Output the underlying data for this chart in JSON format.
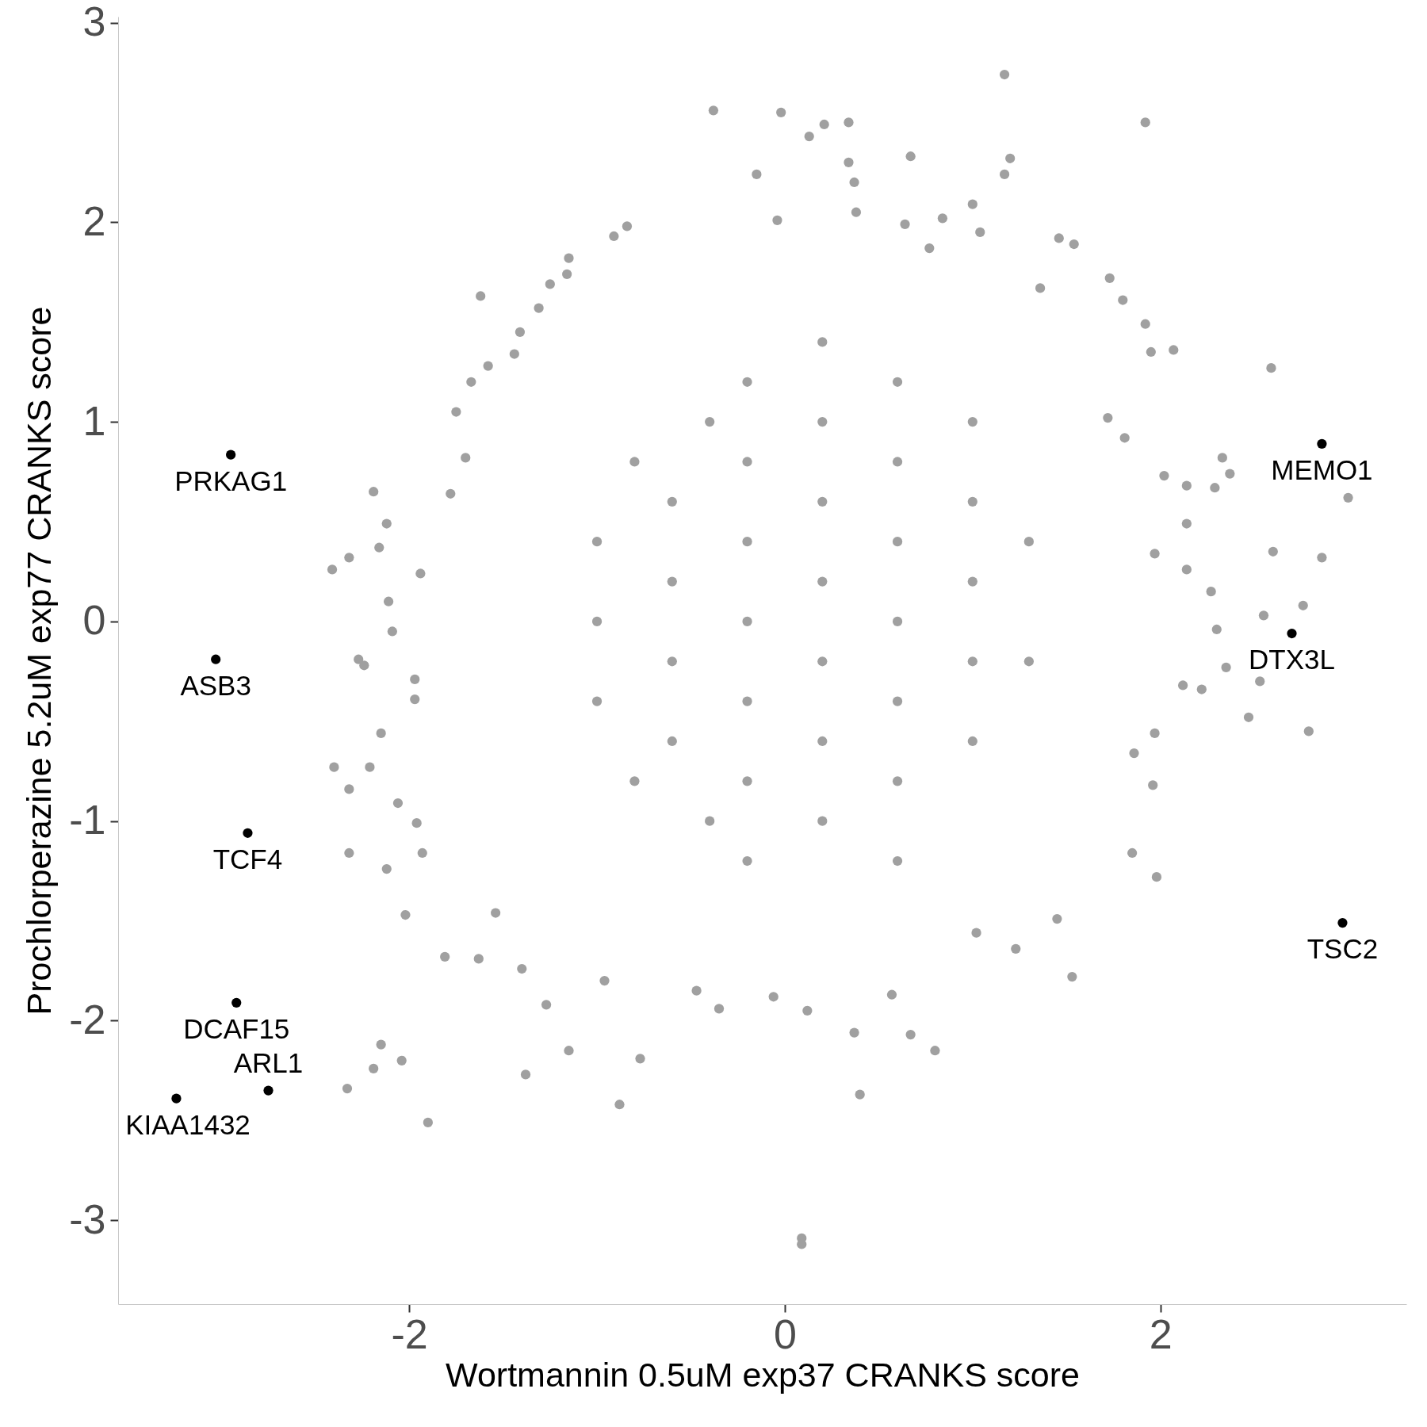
{
  "chart_data": {
    "type": "scatter",
    "xlabel": "Wortmannin 0.5uM exp37 CRANKS score",
    "ylabel": "Prochlorperazine 5.2uM exp77 CRANKS score",
    "xlim": [
      -3.55,
      3.31
    ],
    "ylim": [
      -3.42,
      3.03
    ],
    "xticks": [
      -2,
      0,
      2
    ],
    "yticks": [
      -3,
      -2,
      -1,
      0,
      1,
      2,
      3
    ],
    "grid": false,
    "legend": false,
    "marker": "circle",
    "series": [
      {
        "color": "#a0a0a0",
        "x": [
          1.17,
          -0.38,
          -0.02,
          0.21,
          0.34,
          1.92,
          0.13,
          0.67,
          1.2,
          0.34,
          1.17,
          -0.15,
          0.37,
          1.0,
          0.38,
          -0.04,
          0.84,
          0.64,
          -0.84,
          -0.91,
          1.04,
          0.77,
          1.46,
          1.54,
          -1.15,
          -1.16,
          -1.25,
          -1.62,
          -1.31,
          1.73,
          1.8,
          1.36,
          1.92,
          2.07,
          1.95,
          -1.41,
          -1.44,
          -1.58,
          -1.67,
          -1.75,
          -1.7,
          -2.19,
          -1.78,
          -2.12,
          -2.16,
          -2.32,
          -2.41,
          -1.94,
          -2.11,
          -2.09,
          -2.27,
          -2.24,
          -1.97,
          -1.97,
          -2.15,
          -2.4,
          -2.32,
          -2.21,
          -2.06,
          -1.96,
          -2.32,
          -2.12,
          -1.93,
          -2.02,
          -1.81,
          -1.54,
          -2.15,
          -2.19,
          -2.04,
          -2.33,
          -1.9,
          -1.63,
          -1.27,
          -1.15,
          -1.38,
          -0.88,
          -0.77,
          -1.4,
          -0.96,
          0.09,
          0.09,
          0.4,
          0.37,
          0.8,
          0.67,
          0.57,
          0.12,
          -0.06,
          -0.35,
          -0.47,
          1.02,
          1.23,
          1.53,
          1.45,
          1.98,
          1.85,
          1.96,
          1.86,
          1.97,
          2.12,
          2.22,
          2.35,
          2.47,
          2.53,
          2.79,
          2.3,
          2.27,
          2.55,
          2.6,
          2.86,
          2.76,
          3.0,
          2.59,
          2.33,
          2.29,
          2.37,
          2.14,
          2.02,
          2.14,
          2.14,
          1.97,
          1.81,
          1.72,
          -1.0,
          -1.0,
          -1.0,
          -0.8,
          -0.8,
          -0.6,
          -0.6,
          -0.6,
          -0.6,
          -0.4,
          -0.4,
          -0.2,
          -0.2,
          -0.2,
          -0.2,
          -0.2,
          -0.2,
          -0.2,
          0.2,
          0.2,
          0.2,
          0.2,
          0.2,
          0.2,
          0.2,
          0.6,
          0.6,
          0.6,
          0.6,
          0.6,
          0.6,
          0.6,
          1.0,
          1.0,
          1.0,
          1.0,
          1.0,
          1.3,
          1.3
        ],
        "values": [
          2.74,
          2.56,
          2.55,
          2.49,
          2.5,
          2.5,
          2.43,
          2.33,
          2.32,
          2.3,
          2.24,
          2.24,
          2.2,
          2.09,
          2.05,
          2.01,
          2.02,
          1.99,
          1.98,
          1.93,
          1.95,
          1.87,
          1.92,
          1.89,
          1.82,
          1.74,
          1.69,
          1.63,
          1.57,
          1.72,
          1.61,
          1.67,
          1.49,
          1.36,
          1.35,
          1.45,
          1.34,
          1.28,
          1.2,
          1.05,
          0.82,
          0.65,
          0.64,
          0.49,
          0.37,
          0.32,
          0.26,
          0.24,
          0.1,
          -0.05,
          -0.19,
          -0.22,
          -0.29,
          -0.39,
          -0.56,
          -0.73,
          -0.84,
          -0.73,
          -0.91,
          -1.01,
          -1.16,
          -1.24,
          -1.16,
          -1.47,
          -1.68,
          -1.46,
          -2.12,
          -2.24,
          -2.2,
          -2.34,
          -2.51,
          -1.69,
          -1.92,
          -2.15,
          -2.27,
          -2.42,
          -2.19,
          -1.74,
          -1.8,
          -3.09,
          -3.12,
          -2.37,
          -2.06,
          -2.15,
          -2.07,
          -1.87,
          -1.95,
          -1.88,
          -1.94,
          -1.85,
          -1.56,
          -1.64,
          -1.78,
          -1.49,
          -1.28,
          -1.16,
          -0.82,
          -0.66,
          -0.56,
          -0.32,
          -0.34,
          -0.23,
          -0.48,
          -0.3,
          -0.55,
          -0.04,
          0.15,
          0.03,
          0.35,
          0.32,
          0.08,
          0.62,
          1.27,
          0.82,
          0.67,
          0.74,
          0.68,
          0.73,
          0.49,
          0.26,
          0.34,
          0.92,
          1.02,
          -0.4,
          0.0,
          0.4,
          -0.8,
          0.8,
          -0.2,
          0.2,
          -0.6,
          0.6,
          -1.0,
          1.0,
          -0.4,
          0.0,
          0.4,
          -0.8,
          0.8,
          1.2,
          -1.2,
          -1.0,
          -0.6,
          -0.2,
          0.2,
          0.6,
          1.0,
          1.4,
          -1.2,
          -0.8,
          -0.4,
          0.0,
          0.4,
          0.8,
          1.2,
          -0.6,
          -0.2,
          0.2,
          0.6,
          1.0,
          -0.2,
          0.4
        ]
      },
      {
        "color": "#000000",
        "x": [
          -2.95,
          2.86,
          2.7,
          -3.03,
          -2.86,
          2.97,
          -2.92,
          -3.24,
          -2.75
        ],
        "values": [
          0.835,
          0.89,
          -0.06,
          -0.19,
          -1.06,
          -1.51,
          -1.91,
          -2.39,
          -2.35
        ]
      }
    ],
    "annotations": [
      {
        "text": "PRKAG1",
        "x": -2.95,
        "y": 0.835
      },
      {
        "text": "MEMO1",
        "x": 2.86,
        "y": 0.89
      },
      {
        "text": "DTX3L",
        "x": 2.7,
        "y": -0.06
      },
      {
        "text": "ASB3",
        "x": -3.03,
        "y": -0.19
      },
      {
        "text": "TCF4",
        "x": -2.86,
        "y": -1.06
      },
      {
        "text": "TSC2",
        "x": 2.97,
        "y": -1.51
      },
      {
        "text": "DCAF15",
        "x": -2.92,
        "y": -1.91
      },
      {
        "text": "KIAA1432",
        "x": -3.24,
        "y": -2.39
      },
      {
        "text": "ARL1",
        "x": -2.75,
        "y": -2.35
      }
    ]
  }
}
